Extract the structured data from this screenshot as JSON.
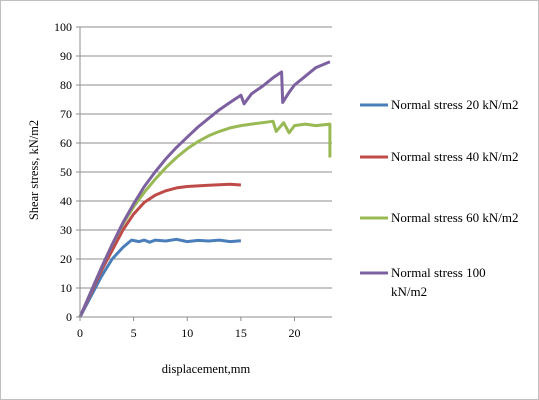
{
  "chart_data": {
    "type": "line",
    "xlabel": "displacement,mm",
    "ylabel": "Shear stress, kN/m2",
    "xlim": [
      0,
      23.5
    ],
    "ylim": [
      0,
      100
    ],
    "xticks": [
      0,
      5,
      10,
      15,
      20
    ],
    "yticks": [
      0,
      10,
      20,
      30,
      40,
      50,
      60,
      70,
      80,
      90,
      100
    ],
    "grid": "horizontal",
    "legend": "right",
    "series": [
      {
        "name": "Normal stress 20 kN/m2",
        "color": "#4a7ebb",
        "x": [
          0,
          1,
          2,
          3,
          4,
          4.8,
          5.5,
          6,
          6.5,
          7,
          8,
          9,
          10,
          11,
          12,
          13,
          14,
          15
        ],
        "y": [
          0,
          7,
          14,
          20,
          24,
          26.5,
          26,
          26.5,
          25.8,
          26.5,
          26.2,
          26.8,
          26,
          26.4,
          26.2,
          26.5,
          26,
          26.3
        ]
      },
      {
        "name": "Normal stress 40 kN/m2",
        "color": "#be4b48",
        "x": [
          0,
          1,
          2,
          3,
          4,
          5,
          6,
          7,
          8,
          9,
          10,
          11,
          12,
          13,
          14,
          15
        ],
        "y": [
          0,
          8,
          16,
          23,
          30,
          35.5,
          39.5,
          42,
          43.5,
          44.5,
          45,
          45.2,
          45.4,
          45.6,
          45.8,
          45.5
        ]
      },
      {
        "name": "Normal stress 60 kN/m2",
        "color": "#98b954",
        "x": [
          0,
          1,
          2,
          3,
          4,
          5,
          6,
          7,
          8,
          9,
          10,
          11,
          12,
          13,
          14,
          15,
          16,
          17,
          18,
          18.3,
          19,
          19.5,
          20,
          21,
          22,
          23.3,
          23.3
        ],
        "y": [
          0,
          8.5,
          17,
          25,
          32,
          38,
          43,
          47.5,
          51.5,
          55,
          58,
          60.5,
          62.5,
          64,
          65.2,
          66,
          66.5,
          67,
          67.5,
          64,
          67,
          63.5,
          66,
          66.5,
          66,
          66.5,
          55
        ]
      },
      {
        "name": "Normal stress 100 kN/m2",
        "color": "#7d60a0",
        "x": [
          0,
          1,
          2,
          3,
          4,
          5,
          6,
          7,
          8,
          9,
          10,
          11,
          12,
          13,
          14,
          15,
          15.3,
          16,
          17,
          18,
          18.8,
          18.9,
          19.5,
          20,
          21,
          22,
          23.3
        ],
        "y": [
          0,
          8.5,
          17,
          25,
          32.5,
          39,
          45,
          50,
          54.5,
          58.5,
          62,
          65.5,
          68.5,
          71.5,
          74,
          76.5,
          73.5,
          77,
          79.5,
          82.5,
          84.5,
          74,
          77.5,
          80,
          83,
          86,
          88
        ]
      }
    ]
  }
}
